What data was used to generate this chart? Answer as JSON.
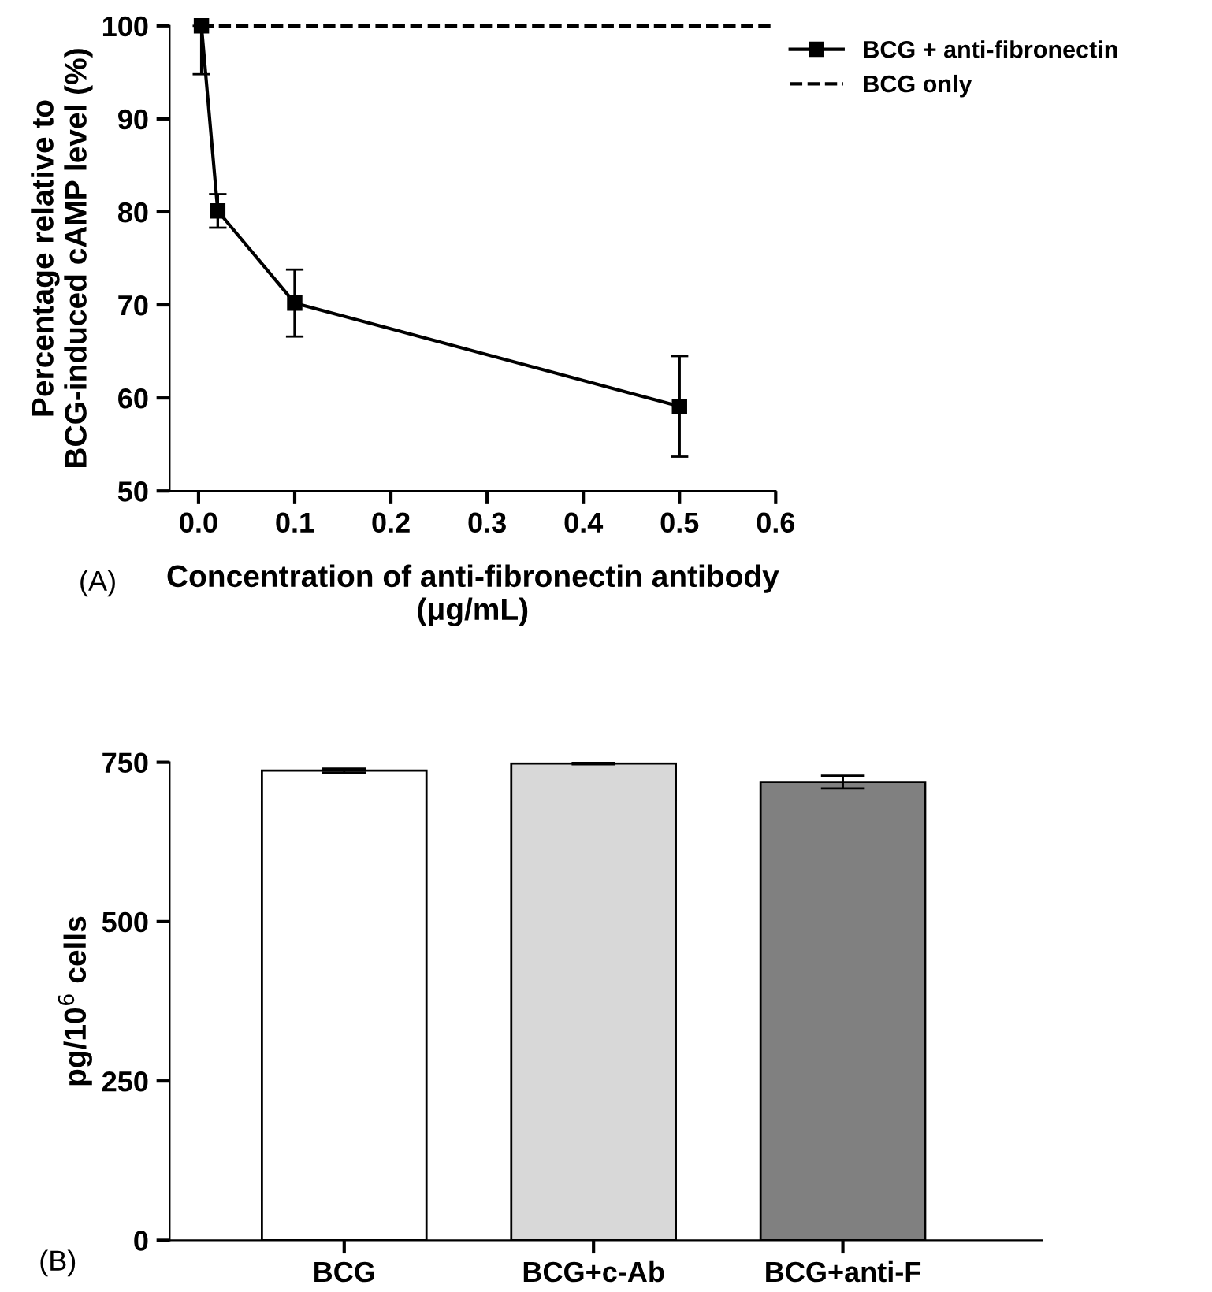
{
  "chart_data": [
    {
      "type": "line",
      "xlabel": "Concentration of anti-fibronectin antibody\n(μg/mL)",
      "ylabel": "Percentage relative to\nBCG-induced cAMP level (%)",
      "series": [
        {
          "name": "BCG + anti-fibronectin",
          "color": "#000000",
          "x": [
            0.003,
            0.02,
            0.1,
            0.5
          ],
          "values": [
            100,
            80.1,
            70.2,
            59.1
          ],
          "errors": [
            [
              94.8,
              100
            ],
            1.8,
            3.6,
            5.4
          ],
          "marker": "square",
          "line_style": "solid"
        },
        {
          "name": "BCG only",
          "color": "#000000",
          "x": [
            0.003,
            0.6
          ],
          "values": [
            100,
            100
          ],
          "marker": "none",
          "line_style": "dashed"
        }
      ],
      "xlim": [
        -0.03,
        0.6
      ],
      "xticks": [
        {
          "value": 0,
          "label": "0.0"
        },
        0.1,
        0.2,
        0.3,
        0.4,
        0.5,
        0.6
      ],
      "ylim": [
        50,
        100
      ],
      "yticks": [
        50,
        60,
        70,
        80,
        90,
        100
      ],
      "legend": "top right",
      "grid": false,
      "annotations": [
        "(A)"
      ]
    },
    {
      "type": "bar",
      "ylabel": "pg/10$^{6}$ cells",
      "categories": [
        "BCG",
        "BCG+c-Ab",
        "BCG+anti-F"
      ],
      "values": [
        737,
        748,
        719
      ],
      "errors": [
        3,
        1,
        10
      ],
      "colors": [
        "#ffffff",
        "#d8d8d8",
        "#808080"
      ],
      "ylim": [
        0,
        750
      ],
      "yticks": [
        0,
        250,
        500,
        750
      ],
      "grid": false,
      "legend": false,
      "annotations": [
        "(B)"
      ]
    }
  ]
}
